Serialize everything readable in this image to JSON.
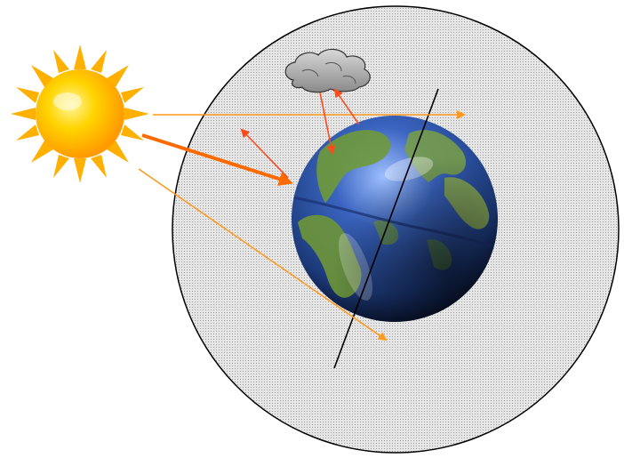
{
  "diagram": {
    "elements": {
      "sun": "sun-icon",
      "cloud": "cloud-icon",
      "earth": "earth-globe-icon",
      "atmosphere": "atmosphere-sphere",
      "axis": "earth-axis-line"
    },
    "colors": {
      "background": "#ffffff",
      "atmosphere_fill": "#dcdcdc",
      "atmosphere_stroke": "#000000",
      "arrow": "#ff9a1f",
      "arrow_strong": "#ff6a00",
      "arrow_reflect": "#ff4a1a",
      "sun_core": "#ffd400",
      "sun_rays": "#ffb000",
      "ocean": "#2a56a8",
      "land": "#6f9a3a",
      "cloud": "#a8a8a8",
      "axis": "#000000"
    }
  }
}
